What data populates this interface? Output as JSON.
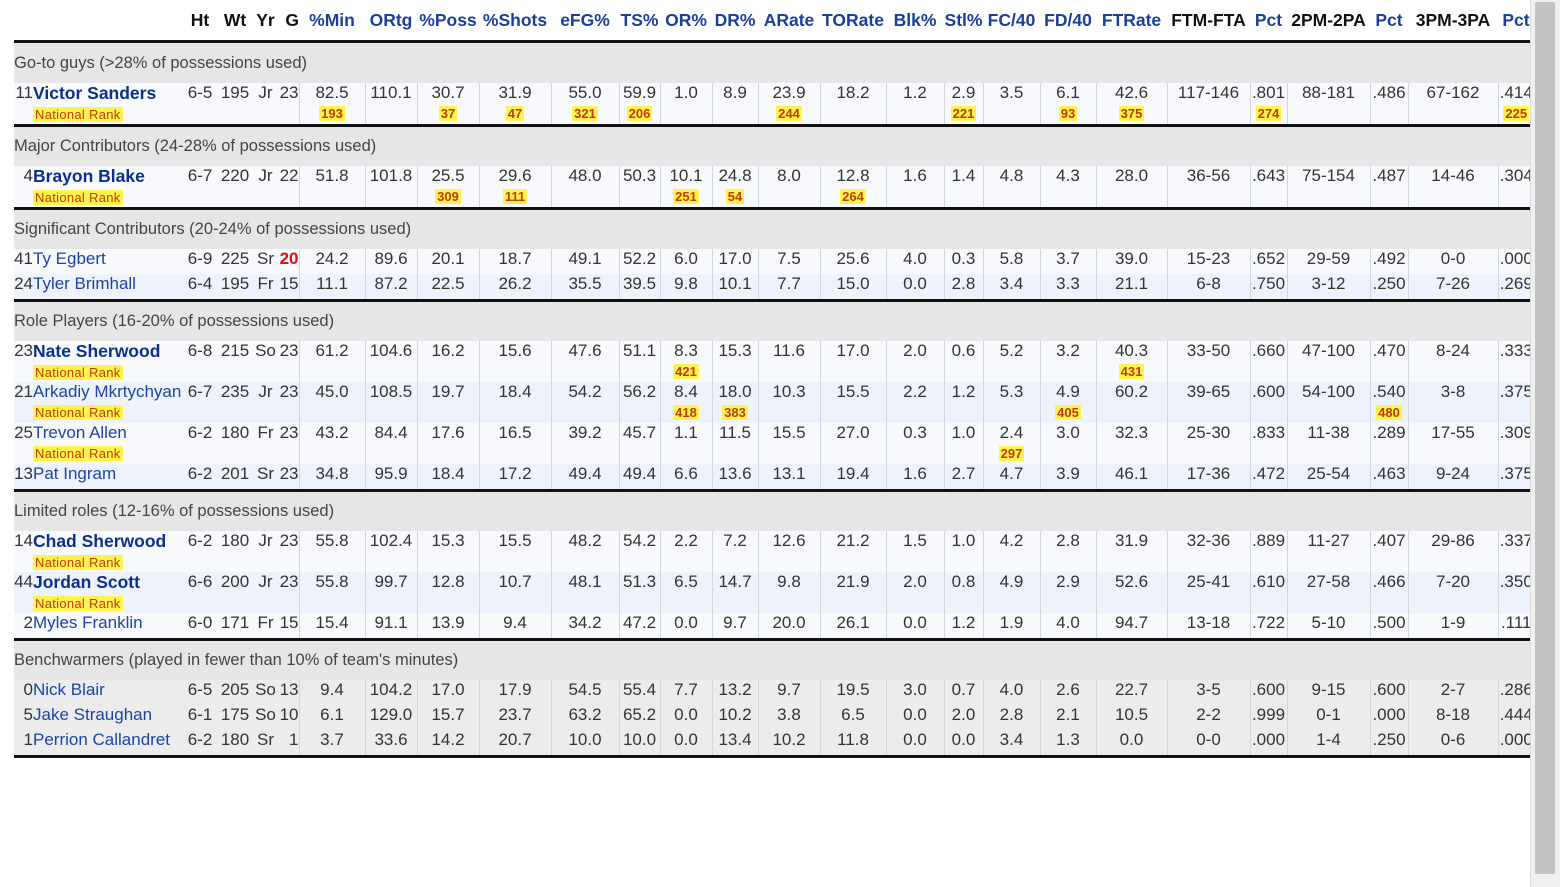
{
  "columns": [
    "",
    "",
    "Ht",
    "Wt",
    "Yr",
    "G",
    "%Min",
    "ORtg",
    "%Poss",
    "%Shots",
    "eFG%",
    "TS%",
    "OR%",
    "DR%",
    "ARate",
    "TORate",
    "Blk%",
    "Stl%",
    "FC/40",
    "FD/40",
    "FTRate",
    "FTM-FTA",
    "Pct",
    "2PM-2PA",
    "Pct",
    "3PM-3PA",
    "Pct"
  ],
  "rank_label": "National Rank",
  "sections": [
    {
      "title": "Go-to guys (>28% of possessions used)",
      "players": [
        {
          "num": "11",
          "name": "Victor Sanders",
          "major": true,
          "cells": [
            "6-5",
            "195",
            "Jr",
            "23",
            "82.5",
            "110.1",
            "30.7",
            "31.9",
            "55.0",
            "59.9",
            "1.0",
            "8.9",
            "23.9",
            "18.2",
            "1.2",
            "2.9",
            "3.5",
            "6.1",
            "42.6",
            "117-146",
            ".801",
            "88-181",
            ".486",
            "67-162",
            ".414"
          ],
          "ranks": {
            "%Min": "193",
            "%Poss": "37",
            "%Shots": "47",
            "eFG%": "321",
            "TS%": "206",
            "ARate": "244",
            "Stl%": "221",
            "FD/40": "93",
            "FTRate": "375",
            "FTPct": "274",
            "3Pct": "225"
          }
        }
      ]
    },
    {
      "title": "Major Contributors (24-28% of possessions used)",
      "players": [
        {
          "num": "4",
          "name": "Brayon Blake",
          "major": true,
          "cells": [
            "6-7",
            "220",
            "Jr",
            "22",
            "51.8",
            "101.8",
            "25.5",
            "29.6",
            "48.0",
            "50.3",
            "10.1",
            "24.8",
            "8.0",
            "12.8",
            "1.6",
            "1.4",
            "4.8",
            "4.3",
            "28.0",
            "36-56",
            ".643",
            "75-154",
            ".487",
            "14-46",
            ".304"
          ],
          "ranks": {
            "%Poss": "309",
            "%Shots": "111",
            "OR%": "251",
            "DR%": "54",
            "TORate": "264"
          }
        }
      ]
    },
    {
      "title": "Significant Contributors (20-24% of possessions used)",
      "players": [
        {
          "num": "41",
          "name": "Ty Egbert",
          "major": false,
          "g_red": true,
          "cells": [
            "6-9",
            "225",
            "Sr",
            "20",
            "24.2",
            "89.6",
            "20.1",
            "18.7",
            "49.1",
            "52.2",
            "6.0",
            "17.0",
            "7.5",
            "25.6",
            "4.0",
            "0.3",
            "5.8",
            "3.7",
            "39.0",
            "15-23",
            ".652",
            "29-59",
            ".492",
            "0-0",
            ".000"
          ]
        },
        {
          "num": "24",
          "name": "Tyler Brimhall",
          "major": false,
          "cells": [
            "6-4",
            "195",
            "Fr",
            "15",
            "11.1",
            "87.2",
            "22.5",
            "26.2",
            "35.5",
            "39.5",
            "9.8",
            "10.1",
            "7.7",
            "15.0",
            "0.0",
            "2.8",
            "3.4",
            "3.3",
            "21.1",
            "6-8",
            ".750",
            "3-12",
            ".250",
            "7-26",
            ".269"
          ]
        }
      ]
    },
    {
      "title": "Role Players (16-20% of possessions used)",
      "players": [
        {
          "num": "23",
          "name": "Nate Sherwood",
          "major": true,
          "cells": [
            "6-8",
            "215",
            "So",
            "23",
            "61.2",
            "104.6",
            "16.2",
            "15.6",
            "47.6",
            "51.1",
            "8.3",
            "15.3",
            "11.6",
            "17.0",
            "2.0",
            "0.6",
            "5.2",
            "3.2",
            "40.3",
            "33-50",
            ".660",
            "47-100",
            ".470",
            "8-24",
            ".333"
          ],
          "ranks": {
            "OR%": "421",
            "FTRate": "431"
          }
        },
        {
          "num": "21",
          "name": "Arkadiy Mkrtychyan",
          "major": false,
          "ranked": true,
          "cells": [
            "6-7",
            "235",
            "Jr",
            "23",
            "45.0",
            "108.5",
            "19.7",
            "18.4",
            "54.2",
            "56.2",
            "8.4",
            "18.0",
            "10.3",
            "15.5",
            "2.2",
            "1.2",
            "5.3",
            "4.9",
            "60.2",
            "39-65",
            ".600",
            "54-100",
            ".540",
            "3-8",
            ".375"
          ],
          "ranks": {
            "OR%": "418",
            "DR%": "383",
            "FD/40": "405",
            "2Pct": "480"
          }
        },
        {
          "num": "25",
          "name": "Trevon Allen",
          "major": false,
          "ranked": true,
          "cells": [
            "6-2",
            "180",
            "Fr",
            "23",
            "43.2",
            "84.4",
            "17.6",
            "16.5",
            "39.2",
            "45.7",
            "1.1",
            "11.5",
            "15.5",
            "27.0",
            "0.3",
            "1.0",
            "2.4",
            "3.0",
            "32.3",
            "25-30",
            ".833",
            "11-38",
            ".289",
            "17-55",
            ".309"
          ],
          "ranks": {
            "FC/40": "297"
          }
        },
        {
          "num": "13",
          "name": "Pat Ingram",
          "major": false,
          "cells": [
            "6-2",
            "201",
            "Sr",
            "23",
            "34.8",
            "95.9",
            "18.4",
            "17.2",
            "49.4",
            "49.4",
            "6.6",
            "13.6",
            "13.1",
            "19.4",
            "1.6",
            "2.7",
            "4.7",
            "3.9",
            "46.1",
            "17-36",
            ".472",
            "25-54",
            ".463",
            "9-24",
            ".375"
          ]
        }
      ]
    },
    {
      "title": "Limited roles (12-16% of possessions used)",
      "players": [
        {
          "num": "14",
          "name": "Chad Sherwood",
          "major": true,
          "cells": [
            "6-2",
            "180",
            "Jr",
            "23",
            "55.8",
            "102.4",
            "15.3",
            "15.5",
            "48.2",
            "54.2",
            "2.2",
            "7.2",
            "12.6",
            "21.2",
            "1.5",
            "1.0",
            "4.2",
            "2.8",
            "31.9",
            "32-36",
            ".889",
            "11-27",
            ".407",
            "29-86",
            ".337"
          ],
          "ranks": {}
        },
        {
          "num": "44",
          "name": "Jordan Scott",
          "major": true,
          "cells": [
            "6-6",
            "200",
            "Jr",
            "23",
            "55.8",
            "99.7",
            "12.8",
            "10.7",
            "48.1",
            "51.3",
            "6.5",
            "14.7",
            "9.8",
            "21.9",
            "2.0",
            "0.8",
            "4.9",
            "2.9",
            "52.6",
            "25-41",
            ".610",
            "27-58",
            ".466",
            "7-20",
            ".350"
          ],
          "ranks": {}
        },
        {
          "num": "2",
          "name": "Myles Franklin",
          "major": false,
          "cells": [
            "6-0",
            "171",
            "Fr",
            "15",
            "15.4",
            "91.1",
            "13.9",
            "9.4",
            "34.2",
            "47.2",
            "0.0",
            "9.7",
            "20.0",
            "26.1",
            "0.0",
            "1.2",
            "1.9",
            "4.0",
            "94.7",
            "13-18",
            ".722",
            "5-10",
            ".500",
            "1-9",
            ".111"
          ]
        }
      ]
    },
    {
      "title": "Benchwarmers (played in fewer than 10% of team's minutes)",
      "bench": true,
      "players": [
        {
          "num": "0",
          "name": "Nick Blair",
          "major": false,
          "cells": [
            "6-5",
            "205",
            "So",
            "13",
            "9.4",
            "104.2",
            "17.0",
            "17.9",
            "54.5",
            "55.4",
            "7.7",
            "13.2",
            "9.7",
            "19.5",
            "3.0",
            "0.7",
            "4.0",
            "2.6",
            "22.7",
            "3-5",
            ".600",
            "9-15",
            ".600",
            "2-7",
            ".286"
          ]
        },
        {
          "num": "5",
          "name": "Jake Straughan",
          "major": false,
          "cells": [
            "6-1",
            "175",
            "So",
            "10",
            "6.1",
            "129.0",
            "15.7",
            "23.7",
            "63.2",
            "65.2",
            "0.0",
            "10.2",
            "3.8",
            "6.5",
            "0.0",
            "2.0",
            "2.8",
            "2.1",
            "10.5",
            "2-2",
            ".999",
            "0-1",
            ".000",
            "8-18",
            ".444"
          ]
        },
        {
          "num": "1",
          "name": "Perrion Callandret",
          "major": false,
          "cells": [
            "6-2",
            "180",
            "Sr",
            "1",
            "3.7",
            "33.6",
            "14.2",
            "20.7",
            "10.0",
            "10.0",
            "0.0",
            "13.4",
            "10.2",
            "11.8",
            "0.0",
            "0.0",
            "3.4",
            "1.3",
            "0.0",
            "0-0",
            ".000",
            "1-4",
            ".250",
            "0-6",
            ".000"
          ]
        }
      ]
    }
  ]
}
